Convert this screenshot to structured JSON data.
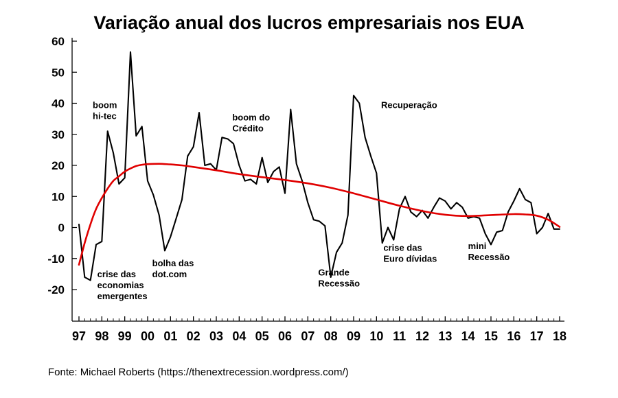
{
  "chart_data": {
    "type": "line",
    "title": "Variação anual dos lucros empresariais nos EUA",
    "xlabel": "",
    "ylabel": "",
    "ylim": [
      -30,
      60
    ],
    "yticks": [
      60,
      50,
      40,
      30,
      20,
      10,
      0,
      -10,
      -20
    ],
    "ytick_labels": [
      "60",
      "50",
      "40",
      "30",
      "20",
      "10",
      "0",
      "-10",
      "-20"
    ],
    "xlim": [
      1997,
      2018.25
    ],
    "xticks": [
      1997,
      1998,
      1999,
      2000,
      2001,
      2002,
      2003,
      2004,
      2005,
      2006,
      2007,
      2008,
      2009,
      2010,
      2011,
      2012,
      2013,
      2014,
      2015,
      2016,
      2017,
      2018
    ],
    "xtick_labels": [
      "97",
      "98",
      "99",
      "00",
      "01",
      "02",
      "03",
      "04",
      "05",
      "06",
      "07",
      "08",
      "09",
      "10",
      "11",
      "12",
      "13",
      "14",
      "15",
      "16",
      "17",
      "18"
    ],
    "grid": false,
    "series": [
      {
        "color": "#000000",
        "points": [
          [
            1997.0,
            1
          ],
          [
            1997.25,
            -16
          ],
          [
            1997.5,
            -17
          ],
          [
            1997.75,
            -5.5
          ],
          [
            1998.0,
            -4.5
          ],
          [
            1998.25,
            31
          ],
          [
            1998.5,
            24
          ],
          [
            1998.75,
            14
          ],
          [
            1999.0,
            16
          ],
          [
            1999.25,
            56.5
          ],
          [
            1999.5,
            29.5
          ],
          [
            1999.75,
            32.5
          ],
          [
            2000.0,
            15
          ],
          [
            2000.25,
            10.5
          ],
          [
            2000.5,
            4
          ],
          [
            2000.75,
            -7.5
          ],
          [
            2001.0,
            -3
          ],
          [
            2001.25,
            3
          ],
          [
            2001.5,
            9
          ],
          [
            2001.75,
            23
          ],
          [
            2002.0,
            26
          ],
          [
            2002.25,
            37
          ],
          [
            2002.5,
            20
          ],
          [
            2002.75,
            20.5
          ],
          [
            2003.0,
            18.5
          ],
          [
            2003.25,
            29
          ],
          [
            2003.5,
            28.5
          ],
          [
            2003.75,
            27
          ],
          [
            2004.0,
            20
          ],
          [
            2004.25,
            15
          ],
          [
            2004.5,
            15.5
          ],
          [
            2004.75,
            14
          ],
          [
            2005.0,
            22.5
          ],
          [
            2005.25,
            14.5
          ],
          [
            2005.5,
            18
          ],
          [
            2005.75,
            19.5
          ],
          [
            2006.0,
            11
          ],
          [
            2006.25,
            38
          ],
          [
            2006.5,
            20.5
          ],
          [
            2006.75,
            15
          ],
          [
            2007.0,
            8
          ],
          [
            2007.25,
            2.5
          ],
          [
            2007.5,
            2
          ],
          [
            2007.75,
            0.5
          ],
          [
            2008.0,
            -16
          ],
          [
            2008.25,
            -8
          ],
          [
            2008.5,
            -5
          ],
          [
            2008.75,
            4
          ],
          [
            2009.0,
            42.5
          ],
          [
            2009.25,
            40
          ],
          [
            2009.5,
            29
          ],
          [
            2009.75,
            23
          ],
          [
            2010.0,
            17.5
          ],
          [
            2010.25,
            -5
          ],
          [
            2010.5,
            0
          ],
          [
            2010.75,
            -4
          ],
          [
            2011.0,
            6
          ],
          [
            2011.25,
            10
          ],
          [
            2011.5,
            5
          ],
          [
            2011.75,
            3.5
          ],
          [
            2012.0,
            5.5
          ],
          [
            2012.25,
            3
          ],
          [
            2012.5,
            6.5
          ],
          [
            2012.75,
            9.5
          ],
          [
            2013.0,
            8.5
          ],
          [
            2013.25,
            6
          ],
          [
            2013.5,
            8
          ],
          [
            2013.75,
            6.5
          ],
          [
            2014.0,
            3
          ],
          [
            2014.25,
            3.5
          ],
          [
            2014.5,
            3
          ],
          [
            2014.75,
            -2
          ],
          [
            2015.0,
            -5.5
          ],
          [
            2015.25,
            -1.5
          ],
          [
            2015.5,
            -1
          ],
          [
            2015.75,
            5
          ],
          [
            2016.0,
            8.5
          ],
          [
            2016.25,
            12.5
          ],
          [
            2016.5,
            9
          ],
          [
            2016.75,
            8
          ],
          [
            2017.0,
            -2
          ],
          [
            2017.25,
            0
          ],
          [
            2017.5,
            4.5
          ],
          [
            2017.75,
            -0.5
          ],
          [
            2018.0,
            -0.5
          ]
        ]
      },
      {
        "color": "#e00000",
        "points": [
          [
            1997.0,
            -12
          ],
          [
            1997.25,
            -5
          ],
          [
            1997.5,
            1
          ],
          [
            1997.75,
            6
          ],
          [
            1998.0,
            9.5
          ],
          [
            1998.25,
            12.5
          ],
          [
            1998.5,
            15
          ],
          [
            1998.75,
            16.5
          ],
          [
            1999.0,
            18
          ],
          [
            1999.25,
            19
          ],
          [
            1999.5,
            19.8
          ],
          [
            1999.75,
            20.2
          ],
          [
            2000.0,
            20.4
          ],
          [
            2000.5,
            20.5
          ],
          [
            2001.0,
            20.3
          ],
          [
            2001.5,
            20
          ],
          [
            2002.0,
            19.5
          ],
          [
            2003.0,
            18.4
          ],
          [
            2004.0,
            17.2
          ],
          [
            2005.0,
            16.2
          ],
          [
            2006.0,
            15.3
          ],
          [
            2007.0,
            14.2
          ],
          [
            2008.0,
            12.8
          ],
          [
            2009.0,
            11
          ],
          [
            2010.0,
            9
          ],
          [
            2011.0,
            7
          ],
          [
            2012.0,
            5.3
          ],
          [
            2013.0,
            4.1
          ],
          [
            2014.0,
            3.7
          ],
          [
            2015.0,
            4
          ],
          [
            2016.0,
            4.3
          ],
          [
            2016.5,
            4.2
          ],
          [
            2017.0,
            3.8
          ],
          [
            2017.5,
            2.5
          ],
          [
            2018.0,
            0.2
          ]
        ]
      }
    ],
    "annotations": [
      {
        "lines": [
          "boom",
          "hi-tec"
        ],
        "x": 1997.6,
        "y": 38.5
      },
      {
        "lines": [
          "crise das",
          "economias",
          "emergentes"
        ],
        "x": 1997.8,
        "y": -16
      },
      {
        "lines": [
          "bolha das",
          "dot.com"
        ],
        "x": 2000.2,
        "y": -12.5
      },
      {
        "lines": [
          "boom do",
          "Crédito"
        ],
        "x": 2003.7,
        "y": 34.5
      },
      {
        "lines": [
          "Recuperação"
        ],
        "x": 2010.2,
        "y": 38.5
      },
      {
        "lines": [
          "Grande",
          "Recessão"
        ],
        "x": 2007.45,
        "y": -15.5
      },
      {
        "lines": [
          "crise das",
          "Euro dívidas"
        ],
        "x": 2010.3,
        "y": -7.5
      },
      {
        "lines": [
          "mini",
          "Recessão"
        ],
        "x": 2014.0,
        "y": -7
      }
    ]
  },
  "footer": {
    "source": "Fonte: Michael Roberts (https://thenextrecession.wordpress.com/)"
  }
}
